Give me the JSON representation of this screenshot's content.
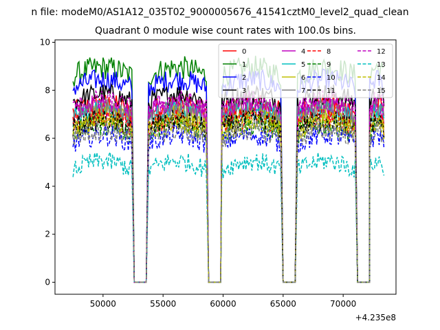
{
  "chart_data": {
    "type": "line",
    "suptitle": "n file: modeM0/AS1A12_035T02_9000005676_41541cztM0_level2_quad_clean",
    "title": "Quadrant 0 module wise count rates with 100.0s bins.",
    "xlabel": "",
    "ylabel": "",
    "x_offset_label": "+4.235e8",
    "xlim": [
      46000,
      74400
    ],
    "ylim": [
      -0.5,
      10.1
    ],
    "x_ticks": [
      50000,
      55000,
      60000,
      65000,
      70000
    ],
    "x_tick_labels": [
      "50000",
      "55000",
      "60000",
      "65000",
      "70000"
    ],
    "y_ticks": [
      0,
      2,
      4,
      6,
      8,
      10
    ],
    "y_tick_labels": [
      "0",
      "2",
      "4",
      "6",
      "8",
      "10"
    ],
    "grid": false,
    "legend_location": "upper right",
    "legend_columns": 4,
    "on_segments": [
      [
        47500,
        52400
      ],
      [
        53800,
        58600
      ],
      [
        59900,
        64800
      ],
      [
        66200,
        71000
      ],
      [
        72200,
        73400
      ]
    ],
    "off_segments": [
      [
        52600,
        53600
      ],
      [
        58800,
        59800
      ],
      [
        65000,
        66000
      ],
      [
        71200,
        72200
      ]
    ],
    "series": [
      {
        "name": "0",
        "color": "#ff0000",
        "dash": false,
        "level": 7.1,
        "noise": 0.45
      },
      {
        "name": "1",
        "color": "#008000",
        "dash": false,
        "level": 8.6,
        "noise": 0.5
      },
      {
        "name": "2",
        "color": "#0000ff",
        "dash": false,
        "level": 8.1,
        "noise": 0.45
      },
      {
        "name": "3",
        "color": "#000000",
        "dash": false,
        "level": 7.5,
        "noise": 0.45
      },
      {
        "name": "4",
        "color": "#bf00bf",
        "dash": false,
        "level": 7.0,
        "noise": 0.45
      },
      {
        "name": "5",
        "color": "#00bfbf",
        "dash": false,
        "level": 6.8,
        "noise": 0.45
      },
      {
        "name": "6",
        "color": "#bfbf00",
        "dash": false,
        "level": 6.6,
        "noise": 0.45
      },
      {
        "name": "7",
        "color": "#808080",
        "dash": false,
        "level": 6.9,
        "noise": 0.45
      },
      {
        "name": "8",
        "color": "#ff0000",
        "dash": true,
        "level": 6.5,
        "noise": 0.45
      },
      {
        "name": "9",
        "color": "#008000",
        "dash": true,
        "level": 6.2,
        "noise": 0.45
      },
      {
        "name": "10",
        "color": "#0000ff",
        "dash": true,
        "level": 5.8,
        "noise": 0.45
      },
      {
        "name": "11",
        "color": "#000000",
        "dash": true,
        "level": 6.4,
        "noise": 0.45
      },
      {
        "name": "12",
        "color": "#bf00bf",
        "dash": true,
        "level": 7.2,
        "noise": 0.45
      },
      {
        "name": "13",
        "color": "#00bfbf",
        "dash": true,
        "level": 4.7,
        "noise": 0.4
      },
      {
        "name": "14",
        "color": "#bfbf00",
        "dash": true,
        "level": 6.3,
        "noise": 0.45
      },
      {
        "name": "15",
        "color": "#808080",
        "dash": true,
        "level": 6.0,
        "noise": 0.45
      }
    ]
  }
}
